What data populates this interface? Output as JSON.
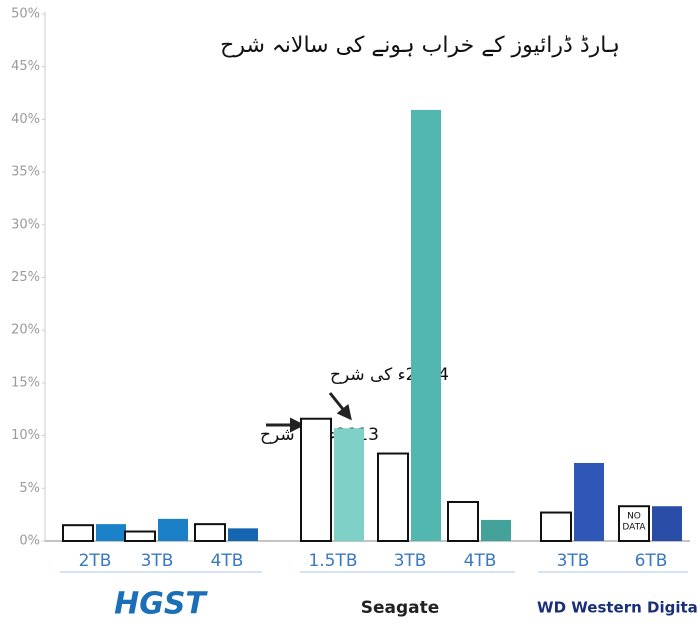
{
  "chart_data": {
    "type": "bar",
    "title": "ہارڈ ڈرائیوز کے خراب ہونے کی سالانہ شرح",
    "categories": [
      "2TB",
      "3TB",
      "4TB",
      "1.5TB",
      "3TB",
      "4TB",
      "3TB",
      "6TB"
    ],
    "brands": [
      "HGST",
      "Seagate",
      "WD Western Digital"
    ],
    "series": [
      {
        "name": "2013ء کی شرح",
        "color": "#ffffff",
        "values": [
          1.5,
          0.9,
          1.6,
          11.6,
          8.3,
          3.7,
          2.7,
          null
        ]
      },
      {
        "name": "2014ء کی شرح",
        "colors": [
          "#1a82c8",
          "#1a7fc4",
          "#1565b0",
          "#7fd0c7",
          "#52b7ae",
          "#43a39b",
          "#2f57b8",
          "#2a4ea8"
        ],
        "values": [
          1.6,
          2.1,
          1.2,
          10.7,
          40.9,
          2.0,
          7.4,
          3.3
        ]
      }
    ],
    "no_data_label": [
      "NO",
      "DATA"
    ],
    "ylim": [
      0,
      50
    ],
    "yticks": [
      {
        "value": 0,
        "label": "0%"
      },
      {
        "value": 5,
        "label": "5%"
      },
      {
        "value": 10,
        "label": "10%"
      },
      {
        "value": 15,
        "label": "15%"
      },
      {
        "value": 20,
        "label": "20%"
      },
      {
        "value": 25,
        "label": "25%"
      },
      {
        "value": 30,
        "label": "30%"
      },
      {
        "value": 35,
        "label": "35%"
      },
      {
        "value": 40,
        "label": "40%"
      },
      {
        "value": 45,
        "label": "45%"
      },
      {
        "value": 50,
        "label": "50%"
      }
    ],
    "grid": false
  }
}
